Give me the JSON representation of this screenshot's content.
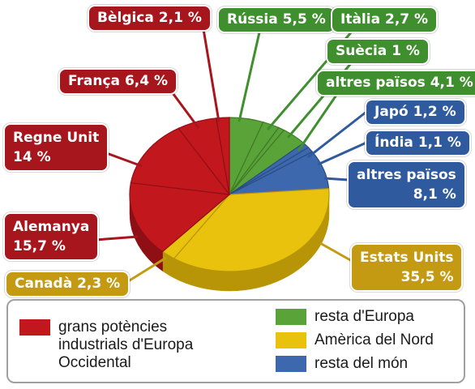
{
  "chart_data": {
    "type": "pie",
    "slices": [
      {
        "label": "Estats Units",
        "value_text": "35,5 %",
        "value": 35.5,
        "group": "america"
      },
      {
        "label": "Canadà",
        "value_text": "2,3 %",
        "value": 2.3,
        "group": "america"
      },
      {
        "label": "Alemanya",
        "value_text": "15,7 %",
        "value": 15.7,
        "group": "west"
      },
      {
        "label": "Regne Unit",
        "value_text": "14 %",
        "value": 14.0,
        "group": "west"
      },
      {
        "label": "França",
        "value_text": "6,4 %",
        "value": 6.4,
        "group": "west"
      },
      {
        "label": "Bèlgica",
        "value_text": "2,1 %",
        "value": 2.1,
        "group": "west"
      },
      {
        "label": "Rússia",
        "value_text": "5,5 %",
        "value": 5.5,
        "group": "europe"
      },
      {
        "label": "Itàlia",
        "value_text": "2,7 %",
        "value": 2.7,
        "group": "europe"
      },
      {
        "label": "Suècia",
        "value_text": "1 %",
        "value": 1.0,
        "group": "europe"
      },
      {
        "label": "altres països",
        "value_text": "4,1 %",
        "value": 4.1,
        "group": "europe"
      },
      {
        "label": "Japó",
        "value_text": "1,2 %",
        "value": 1.2,
        "group": "world"
      },
      {
        "label": "Índia",
        "value_text": "1,1 %",
        "value": 1.1,
        "group": "world"
      },
      {
        "label": "altres països",
        "value_text": "8,1 %",
        "value": 8.1,
        "group": "world"
      }
    ],
    "legend": [
      {
        "key": "west",
        "label": "grans potències\nindustrials d'Europa\nOccidental",
        "color": "#c3171e"
      },
      {
        "key": "europe",
        "label": "resta d'Europa",
        "color": "#5aa339"
      },
      {
        "key": "america",
        "label": "Amèrica del Nord",
        "color": "#e8c20c"
      },
      {
        "key": "world",
        "label": "resta del món",
        "color": "#3d68ad"
      }
    ],
    "legend_position": "bottom",
    "colors": {
      "west": "#c3171e",
      "europe": "#5aa339",
      "america": "#e8c20c",
      "world": "#3d68ad"
    }
  }
}
